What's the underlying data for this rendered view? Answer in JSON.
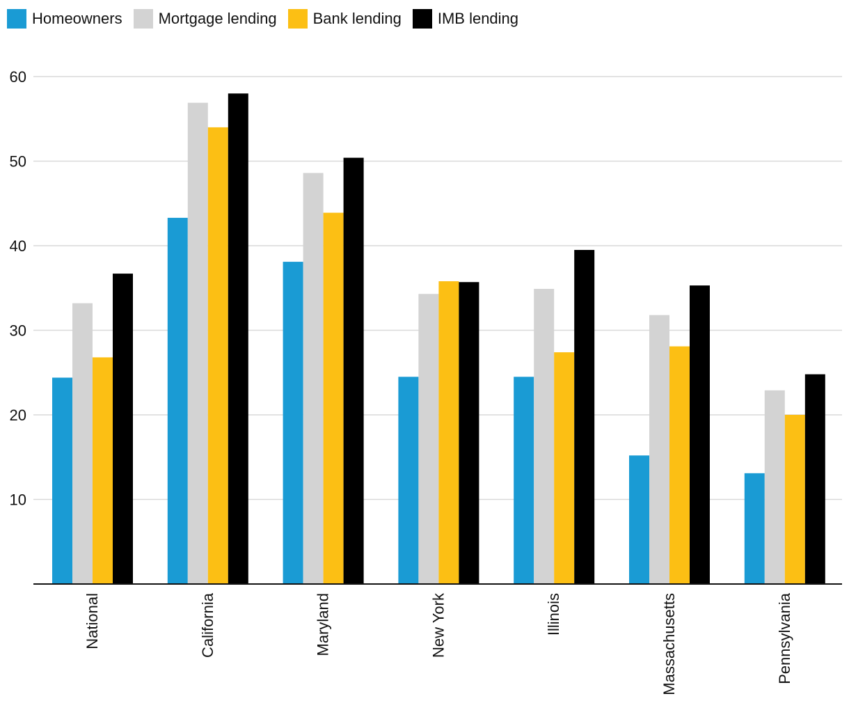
{
  "chart_data": {
    "type": "bar",
    "title": "",
    "xlabel": "",
    "ylabel": "",
    "ylim": [
      0,
      60
    ],
    "yticks": [
      10,
      20,
      30,
      40,
      50,
      60
    ],
    "grid": true,
    "legend_position": "top-left",
    "categories": [
      "National",
      "California",
      "Maryland",
      "New York",
      "Illinois",
      "Massachusetts",
      "Pennsylvania"
    ],
    "series": [
      {
        "name": "Homeowners",
        "color": "#1a9bd4",
        "values": [
          24.4,
          43.3,
          38.1,
          24.5,
          24.5,
          15.2,
          13.1
        ]
      },
      {
        "name": "Mortgage lending",
        "color": "#d3d3d3",
        "values": [
          33.2,
          56.9,
          48.6,
          34.3,
          34.9,
          31.8,
          22.9
        ]
      },
      {
        "name": "Bank lending",
        "color": "#fcbf14",
        "values": [
          26.8,
          54.0,
          43.9,
          35.8,
          27.4,
          28.1,
          20.0
        ]
      },
      {
        "name": "IMB lending",
        "color": "#000000",
        "values": [
          36.7,
          58.0,
          50.4,
          35.7,
          39.5,
          35.3,
          24.8
        ]
      }
    ]
  }
}
